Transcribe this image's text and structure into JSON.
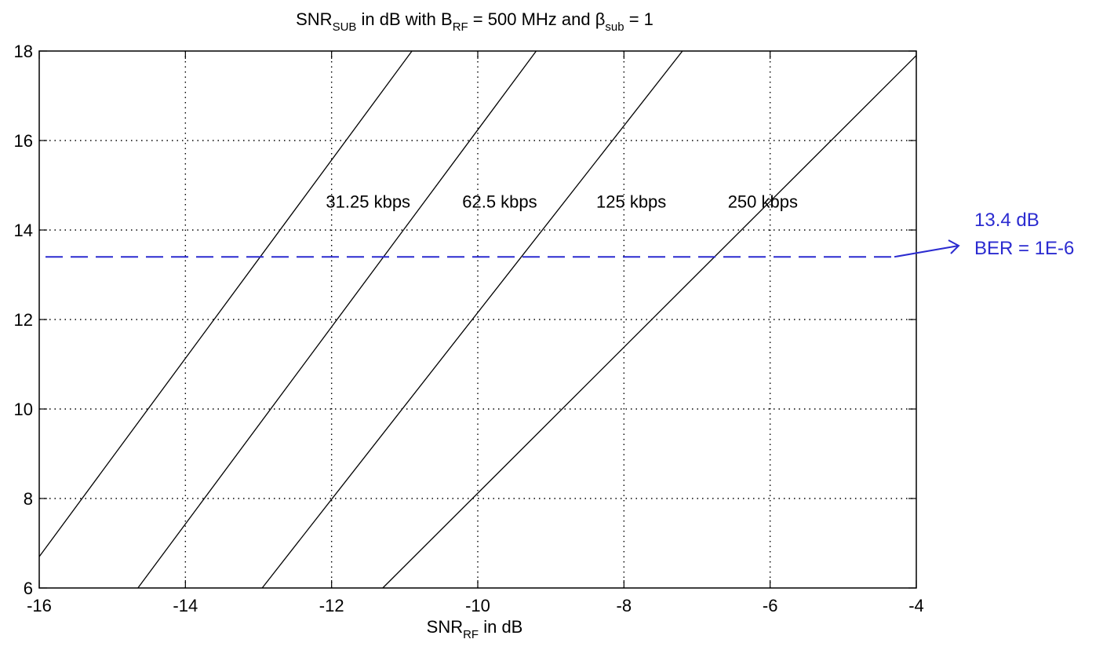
{
  "chart_data": {
    "type": "line",
    "title": {
      "prefix": "SNR",
      "prefix_sub": "SUB",
      "mid1": " in dB with B",
      "mid1_sub": "RF",
      "mid2": " = 500 MHz and β",
      "mid2_sub": "sub",
      "suffix": " = 1"
    },
    "xlabel": {
      "main": "SNR",
      "sub": "RF",
      "suffix": " in dB"
    },
    "ylabel": "",
    "xlim": [
      -16,
      -4
    ],
    "ylim": [
      6,
      18
    ],
    "xticks": [
      -16,
      -14,
      -12,
      -10,
      -8,
      -6,
      -4
    ],
    "yticks": [
      6,
      8,
      10,
      12,
      14,
      16,
      18
    ],
    "xtick_labels": [
      "-16",
      "-14",
      "-12",
      "-10",
      "-8",
      "-6",
      "-4"
    ],
    "ytick_labels": [
      "6",
      "8",
      "10",
      "12",
      "14",
      "16",
      "18"
    ],
    "grid": true,
    "grid_style": "dotted",
    "series": [
      {
        "name": "31.25 kbps",
        "x": [
          -16,
          -10.9
        ],
        "y": [
          6.7,
          18
        ]
      },
      {
        "name": "62.5 kbps",
        "x": [
          -14.65,
          -9.2
        ],
        "y": [
          6,
          18
        ]
      },
      {
        "name": "125 kbps",
        "x": [
          -12.95,
          -7.2
        ],
        "y": [
          6,
          18
        ]
      },
      {
        "name": "250 kbps",
        "x": [
          -11.3,
          -4
        ],
        "y": [
          6,
          17.9
        ]
      }
    ],
    "series_label_positions": [
      {
        "x": -11.5,
        "y": 14.5
      },
      {
        "x": -9.7,
        "y": 14.5
      },
      {
        "x": -7.9,
        "y": 14.5
      },
      {
        "x": -6.1,
        "y": 14.5
      }
    ],
    "reference_line": {
      "y": 13.4,
      "x": [
        -16,
        -4.3
      ],
      "color": "#2b2bd0",
      "style": "dashed"
    },
    "annotation": {
      "lines": [
        "13.4 dB",
        "BER = 1E-6"
      ],
      "color": "#2b2bd0",
      "arrow_to": {
        "x": -4.3,
        "y": 13.4
      }
    }
  }
}
